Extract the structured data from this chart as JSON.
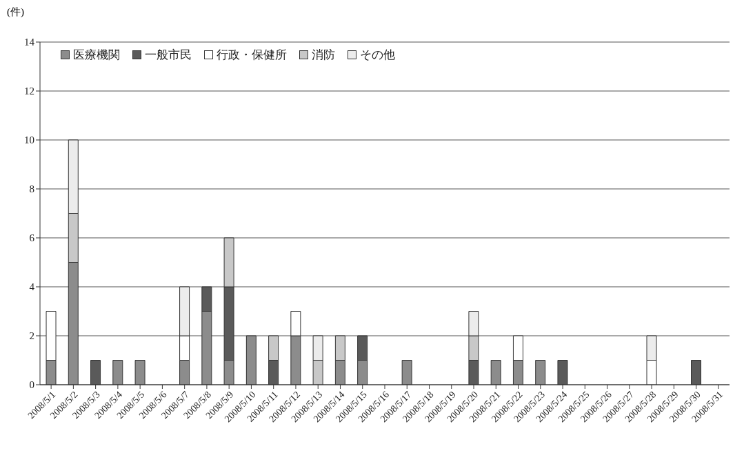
{
  "chart_data": {
    "type": "bar",
    "stacked": true,
    "ylabel": "(件)",
    "categories": [
      "2008/5/1",
      "2008/5/2",
      "2008/5/3",
      "2008/5/4",
      "2008/5/5",
      "2008/5/6",
      "2008/5/7",
      "2008/5/8",
      "2008/5/9",
      "2008/5/10",
      "2008/5/11",
      "2008/5/12",
      "2008/5/13",
      "2008/5/14",
      "2008/5/15",
      "2008/5/16",
      "2008/5/17",
      "2008/5/18",
      "2008/5/19",
      "2008/5/20",
      "2008/5/21",
      "2008/5/22",
      "2008/5/23",
      "2008/5/24",
      "2008/5/25",
      "2008/5/26",
      "2008/5/27",
      "2008/5/28",
      "2008/5/29",
      "2008/5/30",
      "2008/5/31"
    ],
    "series": [
      {
        "name": "医療機関",
        "color": "#8c8c8c",
        "values": [
          1,
          5,
          0,
          1,
          1,
          0,
          1,
          3,
          1,
          2,
          0,
          2,
          0,
          1,
          1,
          0,
          1,
          0,
          0,
          0,
          1,
          1,
          1,
          0,
          0,
          0,
          0,
          0,
          0,
          0,
          0
        ]
      },
      {
        "name": "一般市民",
        "color": "#5a5a5a",
        "values": [
          0,
          0,
          1,
          0,
          0,
          0,
          0,
          1,
          3,
          0,
          1,
          0,
          0,
          0,
          1,
          0,
          0,
          0,
          0,
          1,
          0,
          0,
          0,
          1,
          0,
          0,
          0,
          0,
          0,
          1,
          0
        ]
      },
      {
        "name": "行政・保健所",
        "color": "#ffffff",
        "values": [
          2,
          0,
          0,
          0,
          0,
          0,
          1,
          0,
          0,
          0,
          0,
          1,
          0,
          0,
          0,
          0,
          0,
          0,
          0,
          0,
          0,
          1,
          0,
          0,
          0,
          0,
          0,
          1,
          0,
          0,
          0
        ]
      },
      {
        "name": "消防",
        "color": "#c8c8c8",
        "values": [
          0,
          2,
          0,
          0,
          0,
          0,
          0,
          0,
          2,
          0,
          1,
          0,
          1,
          1,
          0,
          0,
          0,
          0,
          0,
          1,
          0,
          0,
          0,
          0,
          0,
          0,
          0,
          0,
          0,
          0,
          0
        ]
      },
      {
        "name": "その他",
        "color": "#ececec",
        "values": [
          0,
          3,
          0,
          0,
          0,
          0,
          2,
          0,
          0,
          0,
          0,
          0,
          1,
          0,
          0,
          0,
          0,
          0,
          0,
          1,
          0,
          0,
          0,
          0,
          0,
          0,
          0,
          1,
          0,
          0,
          0
        ]
      }
    ],
    "ylim": [
      0,
      14
    ],
    "yticks": [
      0,
      2,
      4,
      6,
      8,
      10,
      12,
      14
    ],
    "grid": "y",
    "legend": "top left"
  }
}
